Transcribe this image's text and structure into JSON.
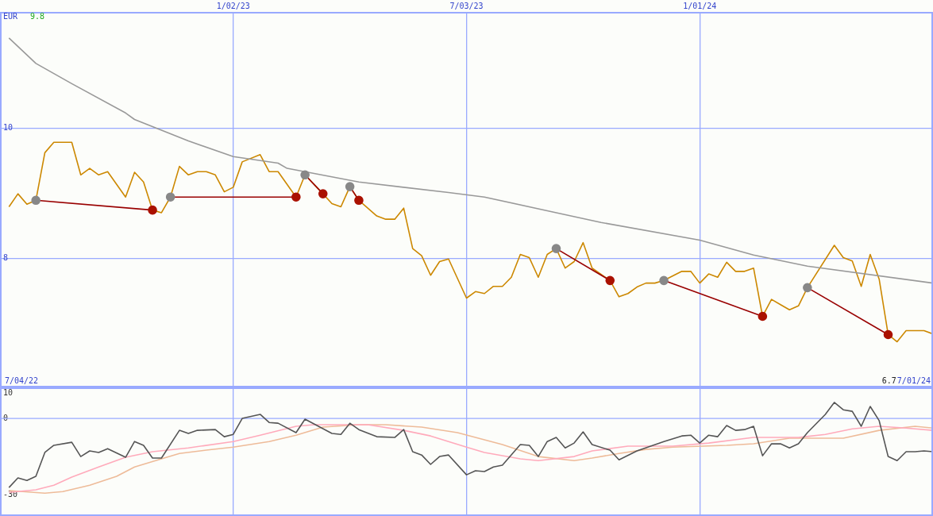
{
  "chart_data": [
    {
      "type": "line",
      "ylabel": "EUR",
      "annotations": [
        "9.8",
        "6.7",
        "7/04/22",
        "7/01/24"
      ],
      "xlim": [
        "2022-07-04",
        "2024-07-01"
      ],
      "xticks": [
        {
          "value": "2023-01-02",
          "label": "1/02/23"
        },
        {
          "value": "2023-07-03",
          "label": "7/03/23"
        },
        {
          "value": "2024-01-01",
          "label": "1/01/24"
        }
      ],
      "ylim": [
        6.02,
        11.78
      ],
      "yticks": [
        8,
        10
      ],
      "grid": true,
      "legend": false,
      "marker": "none",
      "x": [
        "2022-07-11",
        "2022-07-18",
        "2022-07-25",
        "2022-08-01",
        "2022-08-08",
        "2022-08-15",
        "2022-08-29",
        "2022-09-05",
        "2022-09-12",
        "2022-09-19",
        "2022-09-26",
        "2022-10-10",
        "2022-10-17",
        "2022-10-24",
        "2022-10-31",
        "2022-11-07",
        "2022-11-14",
        "2022-11-21",
        "2022-11-28",
        "2022-12-05",
        "2022-12-12",
        "2022-12-19",
        "2022-12-26",
        "2023-01-02",
        "2023-01-09",
        "2023-01-23",
        "2023-01-30",
        "2023-02-06",
        "2023-02-20",
        "2023-02-27",
        "2023-03-13",
        "2023-03-20",
        "2023-03-27",
        "2023-04-03",
        "2023-04-10",
        "2023-04-24",
        "2023-05-01",
        "2023-05-08",
        "2023-05-15",
        "2023-05-22",
        "2023-05-29",
        "2023-06-05",
        "2023-06-12",
        "2023-06-19",
        "2023-07-03",
        "2023-07-10",
        "2023-07-17",
        "2023-07-24",
        "2023-07-31",
        "2023-08-07",
        "2023-08-14",
        "2023-08-21",
        "2023-08-28",
        "2023-09-04",
        "2023-09-11",
        "2023-09-18",
        "2023-09-25",
        "2023-10-02",
        "2023-10-09",
        "2023-10-23",
        "2023-10-30",
        "2023-11-06",
        "2023-11-13",
        "2023-11-20",
        "2023-11-27",
        "2023-12-04",
        "2023-12-18",
        "2023-12-25",
        "2024-01-01",
        "2024-01-08",
        "2024-01-15",
        "2024-01-22",
        "2024-01-29",
        "2024-02-05",
        "2024-02-12",
        "2024-02-19",
        "2024-02-26",
        "2024-03-04",
        "2024-03-11",
        "2024-03-18",
        "2024-03-25",
        "2024-04-15",
        "2024-04-22",
        "2024-04-29",
        "2024-05-06",
        "2024-05-13",
        "2024-05-20",
        "2024-05-27",
        "2024-06-03",
        "2024-06-10",
        "2024-06-24",
        "2024-07-01"
      ],
      "series": [
        {
          "color": "#cc8800",
          "values": [
            8.79,
            8.99,
            8.83,
            8.89,
            9.62,
            9.78,
            9.78,
            9.28,
            9.38,
            9.28,
            9.33,
            8.94,
            9.32,
            9.17,
            8.74,
            8.7,
            8.94,
            9.41,
            9.28,
            9.33,
            9.33,
            9.28,
            9.02,
            9.09,
            9.48,
            9.59,
            9.33,
            9.33,
            8.94,
            9.28,
            8.99,
            8.84,
            8.79,
            9.1,
            8.89,
            8.65,
            8.6,
            8.6,
            8.77,
            8.15,
            8.04,
            7.74,
            7.95,
            7.99,
            7.39,
            7.49,
            7.46,
            7.57,
            7.57,
            7.71,
            8.06,
            8.01,
            7.71,
            8.06,
            8.15,
            7.85,
            7.95,
            8.24,
            7.85,
            7.66,
            7.41,
            7.46,
            7.56,
            7.62,
            7.62,
            7.66,
            7.8,
            7.8,
            7.62,
            7.76,
            7.71,
            7.94,
            7.8,
            7.8,
            7.85,
            7.11,
            7.37,
            7.29,
            7.21,
            7.27,
            7.55,
            8.2,
            8.01,
            7.96,
            7.57,
            8.06,
            7.68,
            6.83,
            6.72,
            6.89,
            6.89,
            6.84
          ]
        },
        {
          "color": "#999999",
          "x": [
            "2022-07-11",
            "2022-08-01",
            "2022-08-29",
            "2022-10-10",
            "2022-10-17",
            "2022-11-28",
            "2023-01-02",
            "2023-02-06",
            "2023-02-13",
            "2023-04-10",
            "2023-06-19",
            "2023-07-17",
            "2023-09-04",
            "2023-10-16",
            "2024-01-01",
            "2024-02-12",
            "2024-03-25",
            "2024-07-01"
          ],
          "values": [
            11.38,
            10.99,
            10.68,
            10.23,
            10.13,
            9.8,
            9.56,
            9.46,
            9.38,
            9.17,
            9.01,
            8.94,
            8.73,
            8.55,
            8.28,
            8.05,
            7.88,
            7.62
          ]
        },
        {
          "color": "#990000",
          "marker": "circle",
          "colors": [
            "#888888",
            "#aa1100"
          ],
          "x": [
            "2022-08-01",
            "2022-10-31"
          ],
          "values": [
            8.89,
            8.74
          ]
        },
        {
          "color": "#990000",
          "marker": "circle",
          "colors": [
            "#888888",
            "#aa1100"
          ],
          "x": [
            "2022-11-14",
            "2023-02-20"
          ],
          "values": [
            8.94,
            8.94
          ]
        },
        {
          "color": "#990000",
          "marker": "circle",
          "colors": [
            "#888888",
            "#aa1100"
          ],
          "x": [
            "2023-02-27",
            "2023-03-13"
          ],
          "values": [
            9.28,
            8.99
          ]
        },
        {
          "color": "#990000",
          "marker": "circle",
          "colors": [
            "#888888",
            "#aa1100"
          ],
          "x": [
            "2023-04-03",
            "2023-04-10"
          ],
          "values": [
            9.1,
            8.89
          ]
        },
        {
          "color": "#990000",
          "marker": "circle",
          "colors": [
            "#888888",
            "#aa1100"
          ],
          "x": [
            "2023-09-11",
            "2023-10-23"
          ],
          "values": [
            8.15,
            7.66
          ]
        },
        {
          "color": "#990000",
          "marker": "circle",
          "colors": [
            "#888888",
            "#aa1100"
          ],
          "x": [
            "2023-12-04",
            "2024-02-19"
          ],
          "values": [
            7.66,
            7.11
          ]
        },
        {
          "color": "#990000",
          "marker": "circle",
          "colors": [
            "#888888",
            "#aa1100"
          ],
          "x": [
            "2024-03-25",
            "2024-05-27"
          ],
          "values": [
            7.55,
            6.83
          ]
        }
      ]
    },
    {
      "type": "line",
      "xlim": [
        "2022-07-04",
        "2024-07-01"
      ],
      "xticks": [
        {
          "value": "2023-01-02",
          "label": null
        },
        {
          "value": "2023-07-03",
          "label": null
        },
        {
          "value": "2024-01-01",
          "label": null
        }
      ],
      "ylim": [
        -38.4,
        12.2
      ],
      "yticks": [
        10,
        0,
        -30
      ],
      "tick_labels": "y",
      "grid": "x",
      "legend": false,
      "marker": "none",
      "ref_lines": [
        {
          "axis": "y",
          "value": 0
        }
      ],
      "series": [
        {
          "color": "#eebb99",
          "x": [
            "2022-07-11",
            "2022-08-08",
            "2022-08-22",
            "2022-09-12",
            "2022-10-03",
            "2022-10-17",
            "2022-11-07",
            "2022-11-21",
            "2022-12-12",
            "2023-01-02",
            "2023-01-30",
            "2023-02-20",
            "2023-03-13",
            "2023-04-10",
            "2023-05-01",
            "2023-05-29",
            "2023-06-26",
            "2023-07-17",
            "2023-07-31",
            "2023-08-28",
            "2023-09-25",
            "2023-10-09",
            "2023-10-30",
            "2023-11-20",
            "2023-12-11",
            "2024-01-22",
            "2024-02-12",
            "2024-03-11",
            "2024-04-22",
            "2024-05-20",
            "2024-06-17",
            "2024-07-01"
          ],
          "values": [
            -28.4,
            -29.4,
            -28.8,
            -26.3,
            -22.8,
            -19.1,
            -15.9,
            -13.8,
            -12.5,
            -11.3,
            -9.1,
            -6.6,
            -3.4,
            -2.5,
            -2.5,
            -3.4,
            -5.6,
            -8.4,
            -10.3,
            -15.0,
            -16.6,
            -15.6,
            -13.8,
            -12.2,
            -11.3,
            -10.6,
            -10.0,
            -7.8,
            -7.8,
            -4.7,
            -3.1,
            -3.8
          ]
        },
        {
          "color": "#ffaabb",
          "x": [
            "2022-07-11",
            "2022-08-01",
            "2022-08-15",
            "2022-08-29",
            "2022-09-19",
            "2022-10-10",
            "2022-10-31",
            "2022-11-28",
            "2023-01-02",
            "2023-01-23",
            "2023-02-20",
            "2023-03-06",
            "2023-03-27",
            "2023-04-17",
            "2023-05-15",
            "2023-06-05",
            "2023-07-03",
            "2023-07-17",
            "2023-08-14",
            "2023-08-28",
            "2023-09-25",
            "2023-10-09",
            "2023-11-06",
            "2023-12-11",
            "2024-01-08",
            "2024-02-12",
            "2024-03-18",
            "2024-04-08",
            "2024-04-29",
            "2024-05-20",
            "2024-06-10",
            "2024-07-01"
          ],
          "values": [
            -29.1,
            -28.1,
            -26.3,
            -23.1,
            -19.1,
            -15.3,
            -13.1,
            -11.6,
            -9.1,
            -6.6,
            -3.1,
            -2.5,
            -2.5,
            -2.5,
            -4.7,
            -6.9,
            -11.3,
            -13.4,
            -15.9,
            -16.6,
            -15.0,
            -12.8,
            -10.9,
            -10.9,
            -9.7,
            -7.5,
            -7.5,
            -6.3,
            -4.1,
            -3.1,
            -3.8,
            -4.7
          ]
        },
        {
          "color": "#555555",
          "x": [
            "2022-07-11",
            "2022-07-18",
            "2022-07-25",
            "2022-08-01",
            "2022-08-08",
            "2022-08-15",
            "2022-08-29",
            "2022-09-05",
            "2022-09-12",
            "2022-09-19",
            "2022-09-26",
            "2022-10-10",
            "2022-10-17",
            "2022-10-24",
            "2022-10-31",
            "2022-11-07",
            "2022-11-21",
            "2022-11-28",
            "2022-12-05",
            "2022-12-19",
            "2022-12-26",
            "2023-01-02",
            "2023-01-09",
            "2023-01-23",
            "2023-01-30",
            "2023-02-06",
            "2023-02-20",
            "2023-02-27",
            "2023-03-20",
            "2023-03-27",
            "2023-04-03",
            "2023-04-10",
            "2023-04-24",
            "2023-05-08",
            "2023-05-15",
            "2023-05-22",
            "2023-05-29",
            "2023-06-05",
            "2023-06-12",
            "2023-06-19",
            "2023-07-03",
            "2023-07-10",
            "2023-07-17",
            "2023-07-24",
            "2023-07-31",
            "2023-08-14",
            "2023-08-21",
            "2023-08-28",
            "2023-09-04",
            "2023-09-11",
            "2023-09-18",
            "2023-09-25",
            "2023-10-02",
            "2023-10-09",
            "2023-10-23",
            "2023-10-30",
            "2023-11-13",
            "2023-12-04",
            "2023-12-18",
            "2023-12-25",
            "2024-01-01",
            "2024-01-08",
            "2024-01-15",
            "2024-01-22",
            "2024-01-29",
            "2024-02-05",
            "2024-02-12",
            "2024-02-19",
            "2024-02-26",
            "2024-03-04",
            "2024-03-11",
            "2024-03-18",
            "2024-03-25",
            "2024-04-08",
            "2024-04-15",
            "2024-04-22",
            "2024-04-29",
            "2024-05-06",
            "2024-05-13",
            "2024-05-20",
            "2024-05-27",
            "2024-06-03",
            "2024-06-10",
            "2024-06-17",
            "2024-06-24",
            "2024-07-01"
          ],
          "values": [
            -27.2,
            -23.4,
            -24.4,
            -22.8,
            -13.4,
            -10.6,
            -9.4,
            -15.0,
            -12.8,
            -13.4,
            -11.9,
            -15.3,
            -9.1,
            -10.6,
            -15.6,
            -15.6,
            -4.7,
            -5.9,
            -4.7,
            -4.4,
            -7.2,
            -6.3,
            0,
            1.6,
            -1.6,
            -1.9,
            -5.6,
            -0.3,
            -5.9,
            -6.3,
            -1.9,
            -4.4,
            -7.2,
            -7.5,
            -4.4,
            -13.1,
            -14.4,
            -18.1,
            -15.0,
            -14.4,
            -22.2,
            -20.6,
            -20.9,
            -19.1,
            -18.4,
            -10.3,
            -10.6,
            -15.0,
            -9.1,
            -7.5,
            -11.6,
            -9.7,
            -5.3,
            -10.3,
            -12.5,
            -16.3,
            -12.8,
            -9.1,
            -6.9,
            -6.6,
            -9.7,
            -6.6,
            -7.2,
            -2.8,
            -4.7,
            -4.4,
            -3.1,
            -14.7,
            -10.0,
            -10.0,
            -11.6,
            -10.0,
            -5.6,
            1.6,
            6.3,
            3.4,
            2.8,
            -3.1,
            4.7,
            -0.9,
            -15.0,
            -16.6,
            -13.1,
            -13.1,
            -12.8,
            -13.1
          ]
        }
      ]
    }
  ]
}
